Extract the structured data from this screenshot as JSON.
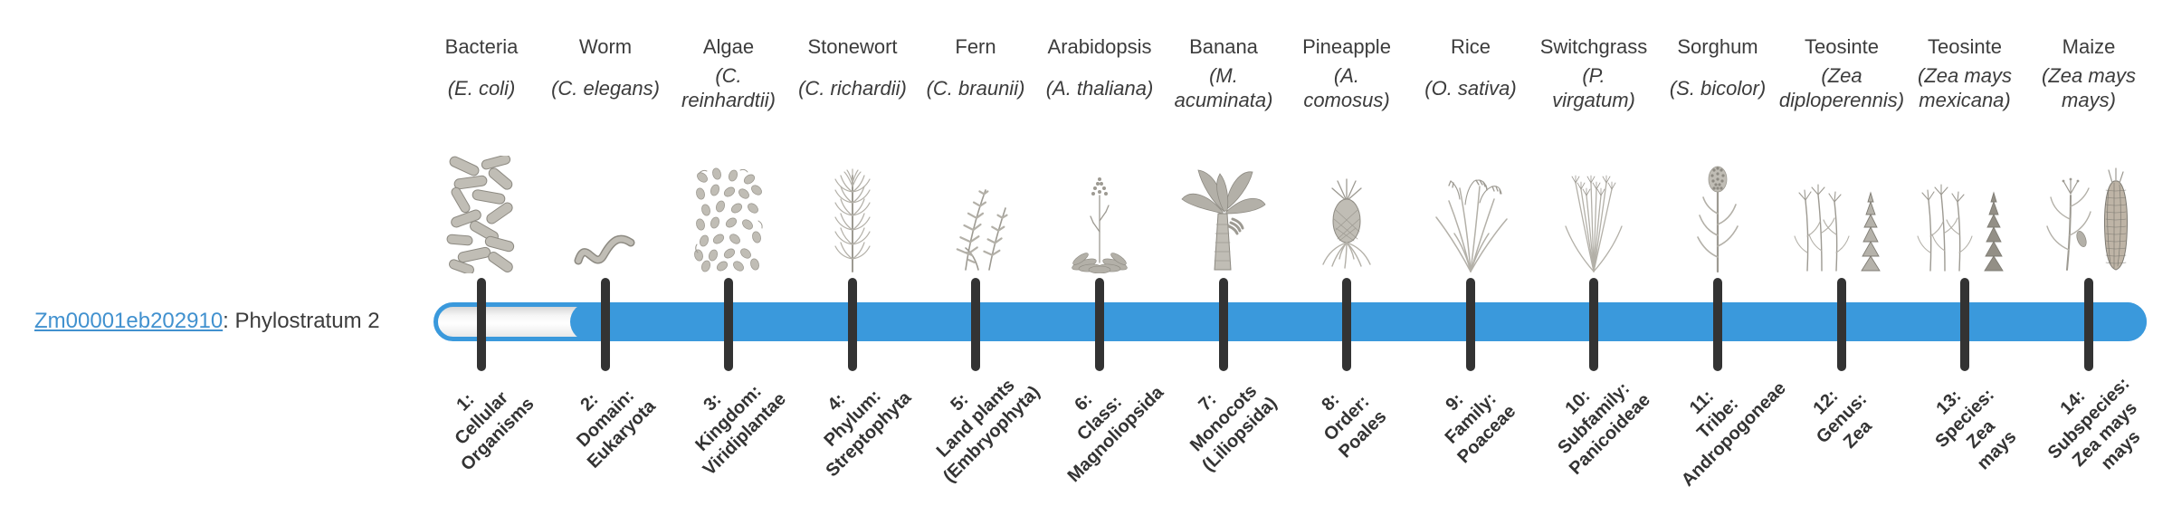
{
  "gene": {
    "id": "Zm00001eb202910",
    "suffix": ": Phylostratum 2",
    "phylostratum": 2
  },
  "timeline": {
    "total_strata": 14,
    "filled_from_stratum": 2,
    "bar_color": "#3a99dc",
    "tick_color": "#333333",
    "link_color": "#4191cf"
  },
  "columns": [
    {
      "name": "Bacteria",
      "species_lines": [
        "(E. coli)"
      ],
      "icon": "bacteria-icon",
      "stage_lines": [
        "1:",
        "Cellular",
        "Organisms"
      ]
    },
    {
      "name": "Worm",
      "species_lines": [
        "(C. elegans)"
      ],
      "icon": "worm-icon",
      "stage_lines": [
        "2:",
        "Domain:",
        "Eukaryota"
      ]
    },
    {
      "name": "Algae",
      "species_lines": [
        "(C.",
        "reinhardtii)"
      ],
      "icon": "algae-icon",
      "stage_lines": [
        "3:",
        "Kingdom:",
        "Viridiplantae"
      ]
    },
    {
      "name": "Stonewort",
      "species_lines": [
        "(C. richardii)"
      ],
      "icon": "stonewort-icon",
      "stage_lines": [
        "4:",
        "Phylum:",
        "Streptophyta"
      ]
    },
    {
      "name": "Fern",
      "species_lines": [
        "(C. braunii)"
      ],
      "icon": "fern-icon",
      "stage_lines": [
        "5:",
        "Land plants",
        "(Embryophyta)"
      ]
    },
    {
      "name": "Arabidopsis",
      "species_lines": [
        "(A. thaliana)"
      ],
      "icon": "arabidopsis-icon",
      "stage_lines": [
        "6:",
        "Class:",
        "Magnoliopsida"
      ]
    },
    {
      "name": "Banana",
      "species_lines": [
        "(M.",
        "acuminata)"
      ],
      "icon": "banana-icon",
      "stage_lines": [
        "7:",
        "Monocots",
        "(Liliopsida)"
      ]
    },
    {
      "name": "Pineapple",
      "species_lines": [
        "(A.",
        "comosus)"
      ],
      "icon": "pineapple-icon",
      "stage_lines": [
        "8:",
        "Order:",
        "Poales"
      ]
    },
    {
      "name": "Rice",
      "species_lines": [
        "(O. sativa)"
      ],
      "icon": "rice-icon",
      "stage_lines": [
        "9:",
        "Family:",
        "Poaceae"
      ]
    },
    {
      "name": "Switchgrass",
      "species_lines": [
        "(P.",
        "virgatum)"
      ],
      "icon": "switchgrass-icon",
      "stage_lines": [
        "10:",
        "Subfamily:",
        "Panicoideae"
      ]
    },
    {
      "name": "Sorghum",
      "species_lines": [
        "(S. bicolor)"
      ],
      "icon": "sorghum-icon",
      "stage_lines": [
        "11:",
        "Tribe:",
        "Andropogoneae"
      ]
    },
    {
      "name": "Teosinte",
      "species_lines": [
        "(Zea",
        "diploperennis)"
      ],
      "icon": "teosinte-diploperennis-icon",
      "stage_lines": [
        "12:",
        "Genus:",
        "Zea"
      ]
    },
    {
      "name": "Teosinte",
      "species_lines": [
        "(Zea mays",
        "mexicana)"
      ],
      "icon": "teosinte-mexicana-icon",
      "stage_lines": [
        "13:",
        "Species:",
        "Zea",
        "mays"
      ]
    },
    {
      "name": "Maize",
      "species_lines": [
        "(Zea mays",
        "mays)"
      ],
      "icon": "maize-icon",
      "stage_lines": [
        "14:",
        "Subspecies:",
        "Zea mays",
        "mays"
      ]
    }
  ]
}
